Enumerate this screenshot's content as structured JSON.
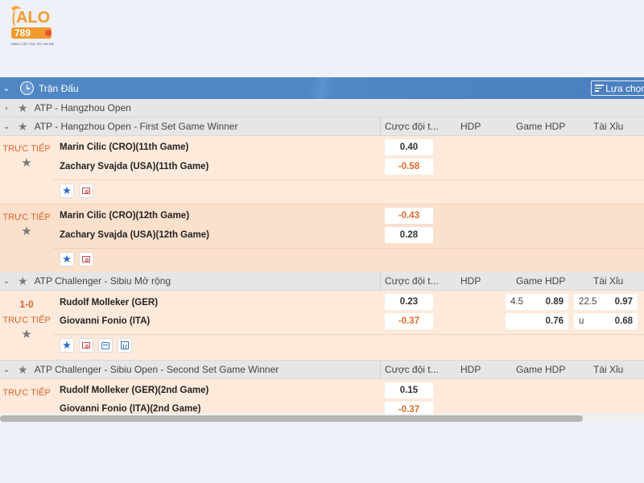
{
  "brand": {
    "logo_text": "ALO",
    "logo_number": "789",
    "logo_tagline": "ĐẲNG CẤP GIẢI TRÍ ONLINE"
  },
  "header": {
    "title": "Trận Đấu",
    "select_label": "Lựa chọn l"
  },
  "columns": {
    "odds": "Cược đội t...",
    "hdp": "HDP",
    "game_hdp": "Game HDP",
    "tai_xiu": "Tài Xỉu"
  },
  "leagues": [
    {
      "name": "ATP - Hangzhou Open"
    },
    {
      "name": "ATP - Hangzhou Open - First Set Game Winner"
    },
    {
      "name": "ATP Challenger - Sibiu Mở rộng"
    },
    {
      "name": "ATP Challenger - Sibiu Open - Second Set Game Winner"
    }
  ],
  "status": {
    "live": "TRỰC TIẾP"
  },
  "matches": [
    {
      "team1": "Marin Cilic (CRO)(11th Game)",
      "team2": "Zachary Svajda (USA)(11th Game)",
      "odds1": "0.40",
      "odds2": "-0.58"
    },
    {
      "team1": "Marin Cilic (CRO)(12th Game)",
      "team2": "Zachary Svajda (USA)(12th Game)",
      "odds1": "-0.43",
      "odds2": "0.28"
    },
    {
      "score": "1-0",
      "team1": "Rudolf Molleker (GER)",
      "team2": "Giovanni Fonio (ITA)",
      "odds1": "0.23",
      "odds2": "-0.37",
      "game_hdp_line": "4.5",
      "game_hdp1": "0.89",
      "game_hdp2": "0.76",
      "ou_line1": "22.5",
      "ou_line2": "u",
      "ou1": "0.97",
      "ou2": "0.68"
    },
    {
      "team1": "Rudolf Molleker (GER)(2nd Game)",
      "team2": "Giovanni Fonio (ITA)(2nd Game)",
      "odds1": "0.15",
      "odds2": "-0.37"
    }
  ],
  "colors": {
    "header_blue": "#4f86c6",
    "row_bg": "#fdeadb",
    "row_bg_alt": "#fbe0cc",
    "negative": "#e06a2c",
    "live": "#d9652a"
  }
}
